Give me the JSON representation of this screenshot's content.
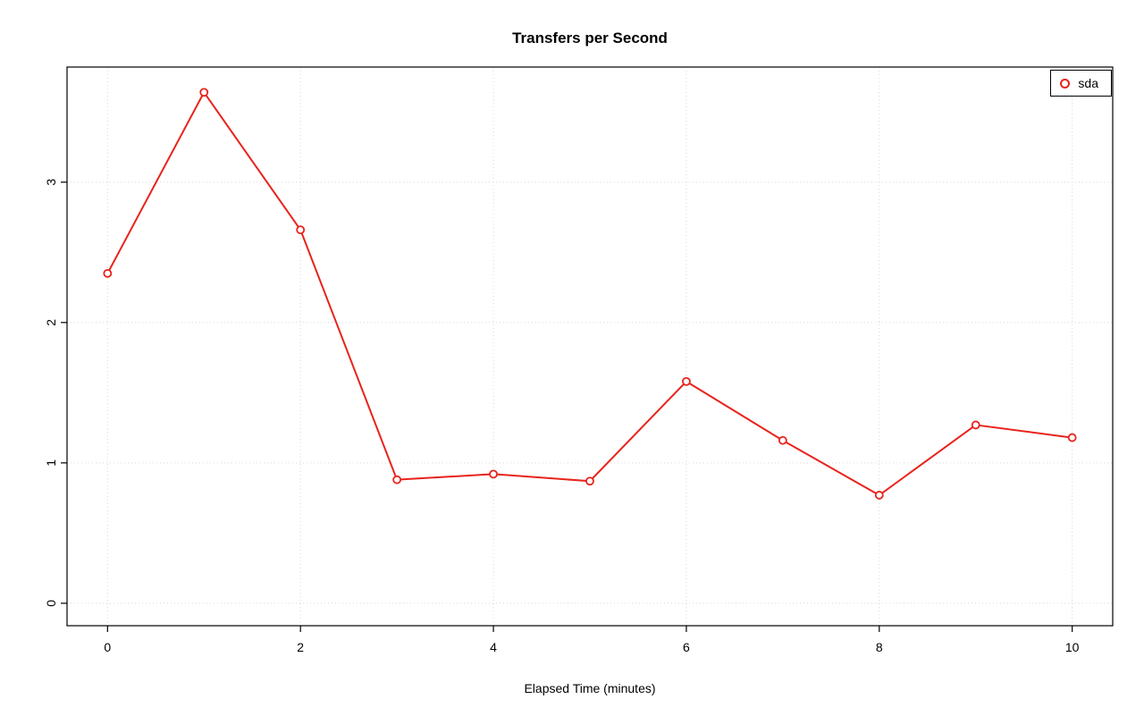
{
  "chart_data": {
    "type": "line",
    "title": "Transfers per Second",
    "xlabel": "Elapsed Time (minutes)",
    "ylabel": "",
    "x": [
      0,
      1,
      2,
      3,
      4,
      5,
      6,
      7,
      8,
      9,
      10
    ],
    "series": [
      {
        "name": "sda",
        "color": "#e8231c",
        "marker": "open-circle",
        "values": [
          2.35,
          3.64,
          2.66,
          0.88,
          0.92,
          0.87,
          1.58,
          1.16,
          0.77,
          1.27,
          1.18
        ]
      }
    ],
    "xticks": [
      0,
      2,
      4,
      6,
      8,
      10
    ],
    "yticks": [
      0,
      1,
      2,
      3
    ],
    "xlim": [
      -0.42,
      10.42
    ],
    "ylim": [
      -0.16,
      3.82
    ],
    "grid": true,
    "grid_style": "dotted",
    "legend_position": "top-right",
    "colors": {
      "grid": "#d8d8d8",
      "axis": "#000000",
      "background": "#ffffff",
      "text": "#000000"
    }
  }
}
